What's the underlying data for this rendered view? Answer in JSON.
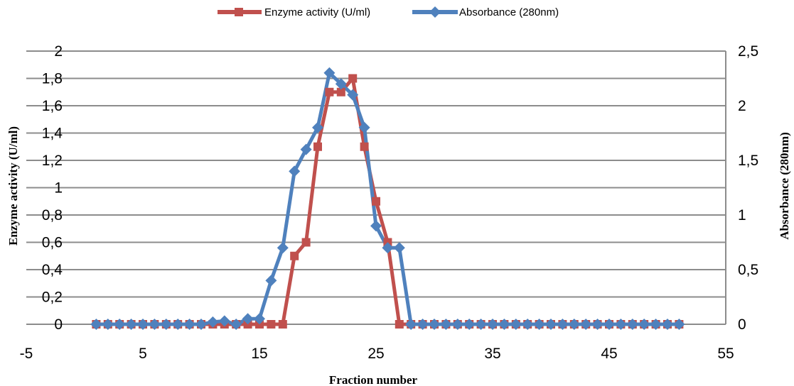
{
  "chart_data": {
    "type": "line",
    "title": "",
    "xlabel": "Fraction number",
    "ylabel_left": "Enzyme activity (U/ml)",
    "ylabel_right": "Absorbance (280nm)",
    "xlim": [
      -5,
      55
    ],
    "ylim_left": [
      0,
      2
    ],
    "ylim_right": [
      0,
      2.5
    ],
    "x_ticks": [
      "-5",
      "5",
      "15",
      "25",
      "35",
      "45",
      "55"
    ],
    "y_left_ticks": [
      "0",
      "0,2",
      "0,4",
      "0,6",
      "0,8",
      "1",
      "1,2",
      "1,4",
      "1,6",
      "1,8",
      "2"
    ],
    "y_right_ticks": [
      "0",
      "0,5",
      "1",
      "1,5",
      "2",
      "2,5"
    ],
    "grid": true,
    "legend_position": "top-center",
    "series": [
      {
        "name": "Enzyme activity (U/ml)",
        "axis": "left",
        "color": "#c0504d",
        "marker": "square",
        "x": [
          1,
          2,
          3,
          4,
          5,
          6,
          7,
          8,
          9,
          10,
          11,
          12,
          13,
          14,
          15,
          16,
          17,
          18,
          19,
          20,
          21,
          22,
          23,
          24,
          25,
          26,
          27,
          28,
          29,
          30,
          31,
          32,
          33,
          34,
          35,
          36,
          37,
          38,
          39,
          40,
          41,
          42,
          43,
          44,
          45,
          46,
          47,
          48,
          49,
          50,
          51
        ],
        "y": [
          0,
          0,
          0,
          0,
          0,
          0,
          0,
          0,
          0,
          0,
          0,
          0,
          0,
          0,
          0,
          0,
          0,
          0.5,
          0.6,
          1.3,
          1.7,
          1.7,
          1.8,
          1.3,
          0.9,
          0.6,
          0,
          0,
          0,
          0,
          0,
          0,
          0,
          0,
          0,
          0,
          0,
          0,
          0,
          0,
          0,
          0,
          0,
          0,
          0,
          0,
          0,
          0,
          0,
          0,
          0
        ]
      },
      {
        "name": "Absorbance (280nm)",
        "axis": "right",
        "color": "#4f81bd",
        "marker": "diamond",
        "x": [
          1,
          2,
          3,
          4,
          5,
          6,
          7,
          8,
          9,
          10,
          11,
          12,
          13,
          14,
          15,
          16,
          17,
          18,
          19,
          20,
          21,
          22,
          23,
          24,
          25,
          26,
          27,
          28,
          29,
          30,
          31,
          32,
          33,
          34,
          35,
          36,
          37,
          38,
          39,
          40,
          41,
          42,
          43,
          44,
          45,
          46,
          47,
          48,
          49,
          50,
          51
        ],
        "y": [
          0,
          0,
          0,
          0,
          0,
          0,
          0,
          0,
          0,
          0,
          0.02,
          0.03,
          0,
          0.05,
          0.05,
          0.4,
          0.7,
          1.4,
          1.6,
          1.8,
          2.3,
          2.2,
          2.1,
          1.8,
          0.9,
          0.7,
          0.7,
          0,
          0,
          0,
          0,
          0,
          0,
          0,
          0,
          0,
          0,
          0,
          0,
          0,
          0,
          0,
          0,
          0,
          0,
          0,
          0,
          0,
          0,
          0,
          0
        ]
      }
    ]
  }
}
